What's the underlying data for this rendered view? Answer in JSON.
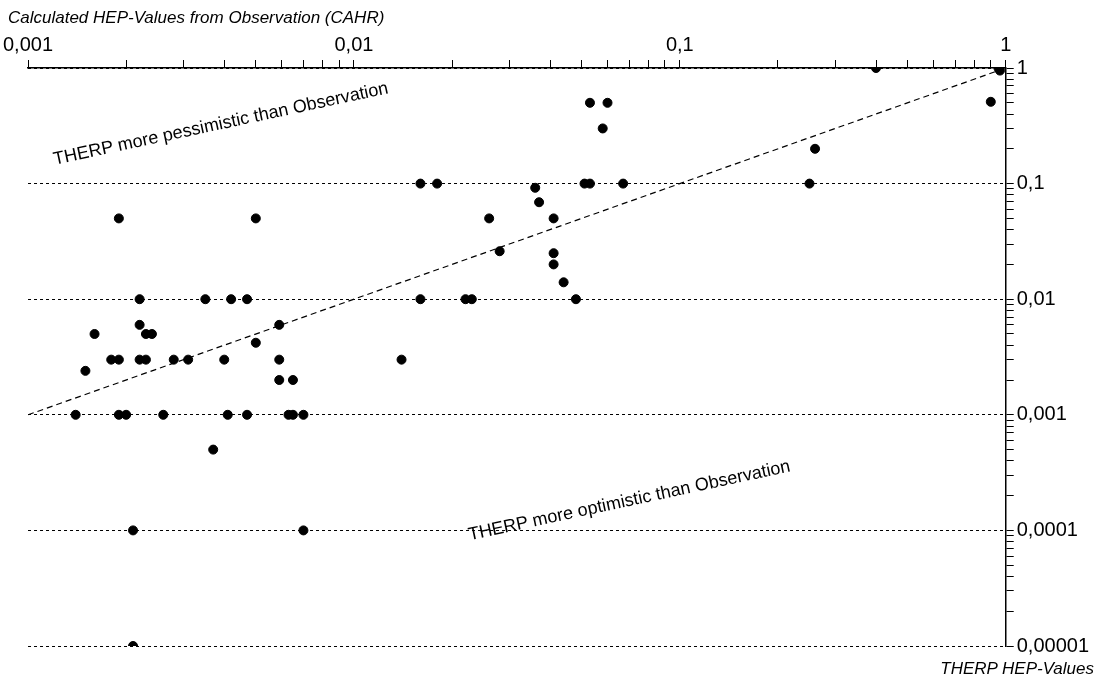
{
  "chart_data": {
    "type": "scatter",
    "xlabel": "Calculated HEP-Values from Observation (CAHR)",
    "ylabel": "THERP HEP-Values",
    "log": "xy",
    "grid": "y",
    "legend": false,
    "marker": "circle",
    "xlim": [
      0.001,
      1
    ],
    "ylim": [
      1e-05,
      1
    ],
    "xticks": [
      {
        "value": 0.001,
        "label": "0,001"
      },
      {
        "value": 0.002,
        "label": null
      },
      {
        "value": 0.003,
        "label": null
      },
      {
        "value": 0.004,
        "label": null
      },
      {
        "value": 0.005,
        "label": null
      },
      {
        "value": 0.006,
        "label": null
      },
      {
        "value": 0.007,
        "label": null
      },
      {
        "value": 0.008,
        "label": null
      },
      {
        "value": 0.009,
        "label": null
      },
      {
        "value": 0.01,
        "label": "0,01"
      },
      {
        "value": 0.02,
        "label": null
      },
      {
        "value": 0.03,
        "label": null
      },
      {
        "value": 0.04,
        "label": null
      },
      {
        "value": 0.05,
        "label": null
      },
      {
        "value": 0.06,
        "label": null
      },
      {
        "value": 0.07,
        "label": null
      },
      {
        "value": 0.08,
        "label": null
      },
      {
        "value": 0.09,
        "label": null
      },
      {
        "value": 0.1,
        "label": "0,1"
      },
      {
        "value": 0.2,
        "label": null
      },
      {
        "value": 0.3,
        "label": null
      },
      {
        "value": 0.4,
        "label": null
      },
      {
        "value": 0.5,
        "label": null
      },
      {
        "value": 0.6,
        "label": null
      },
      {
        "value": 0.7,
        "label": null
      },
      {
        "value": 0.8,
        "label": null
      },
      {
        "value": 0.9,
        "label": null
      },
      1
    ],
    "yticks": [
      {
        "value": 1e-05,
        "label": "0,00001"
      },
      {
        "value": 2e-05,
        "label": null
      },
      {
        "value": 3e-05,
        "label": null
      },
      {
        "value": 4e-05,
        "label": null
      },
      {
        "value": 5e-05,
        "label": null
      },
      {
        "value": 6e-05,
        "label": null
      },
      {
        "value": 7e-05,
        "label": null
      },
      {
        "value": 8e-05,
        "label": null
      },
      {
        "value": 9e-05,
        "label": null
      },
      {
        "value": 0.0001,
        "label": "0,0001"
      },
      {
        "value": 0.0002,
        "label": null
      },
      {
        "value": 0.0003,
        "label": null
      },
      {
        "value": 0.0004,
        "label": null
      },
      {
        "value": 0.0005,
        "label": null
      },
      {
        "value": 0.0006,
        "label": null
      },
      {
        "value": 0.0007,
        "label": null
      },
      {
        "value": 0.0008,
        "label": null
      },
      {
        "value": 0.0009,
        "label": null
      },
      {
        "value": 0.001,
        "label": "0,001"
      },
      {
        "value": 0.002,
        "label": null
      },
      {
        "value": 0.003,
        "label": null
      },
      {
        "value": 0.004,
        "label": null
      },
      {
        "value": 0.005,
        "label": null
      },
      {
        "value": 0.006,
        "label": null
      },
      {
        "value": 0.007,
        "label": null
      },
      {
        "value": 0.008,
        "label": null
      },
      {
        "value": 0.009,
        "label": null
      },
      {
        "value": 0.01,
        "label": "0,01"
      },
      {
        "value": 0.02,
        "label": null
      },
      {
        "value": 0.03,
        "label": null
      },
      {
        "value": 0.04,
        "label": null
      },
      {
        "value": 0.05,
        "label": null
      },
      {
        "value": 0.06,
        "label": null
      },
      {
        "value": 0.07,
        "label": null
      },
      {
        "value": 0.08,
        "label": null
      },
      {
        "value": 0.09,
        "label": null
      },
      {
        "value": 0.1,
        "label": "0,1"
      },
      {
        "value": 0.2,
        "label": null
      },
      {
        "value": 0.3,
        "label": null
      },
      {
        "value": 0.4,
        "label": null
      },
      {
        "value": 0.5,
        "label": null
      },
      {
        "value": 0.6,
        "label": null
      },
      {
        "value": 0.7,
        "label": null
      },
      {
        "value": 0.8,
        "label": null
      },
      {
        "value": 0.9,
        "label": null
      },
      1
    ],
    "annotations": [
      "THERP more pessimistic than Observation",
      "THERP more optimistic than Observation"
    ],
    "series": [
      {
        "color": "#000000",
        "x": [
          0.0019,
          0.005,
          0.0022,
          0.0035,
          0.0042,
          0.0047,
          0.0022,
          0.0016,
          0.0023,
          0.0024,
          0.0059,
          0.005,
          0.0018,
          0.0019,
          0.0022,
          0.0023,
          0.0028,
          0.0031,
          0.004,
          0.0059,
          0.0015,
          0.0059,
          0.0065,
          0.0014,
          0.0019,
          0.002,
          0.0026,
          0.0041,
          0.0047,
          0.0063,
          0.0065,
          0.007,
          0.0037,
          0.0021,
          0.007,
          0.0021,
          0.053,
          0.06,
          0.058,
          0.016,
          0.018,
          0.051,
          0.053,
          0.067,
          0.036,
          0.037,
          0.026,
          0.041,
          0.028,
          0.041,
          0.041,
          0.044,
          0.016,
          0.022,
          0.023,
          0.048,
          0.014,
          0.4,
          0.95,
          0.96,
          0.9,
          0.26,
          0.25
        ],
        "values": [
          0.05,
          0.05,
          0.01,
          0.01,
          0.01,
          0.01,
          0.006,
          0.005,
          0.005,
          0.005,
          0.006,
          0.0042,
          0.003,
          0.003,
          0.003,
          0.003,
          0.003,
          0.003,
          0.003,
          0.003,
          0.0024,
          0.002,
          0.002,
          0.001,
          0.001,
          0.001,
          0.001,
          0.001,
          0.001,
          0.001,
          0.001,
          0.001,
          0.0005,
          0.0001,
          0.0001,
          1e-05,
          0.5,
          0.5,
          0.3,
          0.1,
          0.1,
          0.1,
          0.1,
          0.1,
          0.092,
          0.069,
          0.05,
          0.05,
          0.026,
          0.025,
          0.02,
          0.014,
          0.01,
          0.01,
          0.01,
          0.01,
          0.003,
          1,
          1,
          0.95,
          0.51,
          0.2,
          0.1
        ]
      },
      {
        "type": "line",
        "color": "#000000",
        "line_style": "dashed",
        "marker": "none",
        "x": [
          0.001,
          1
        ],
        "values": [
          0.001,
          1
        ]
      }
    ]
  }
}
